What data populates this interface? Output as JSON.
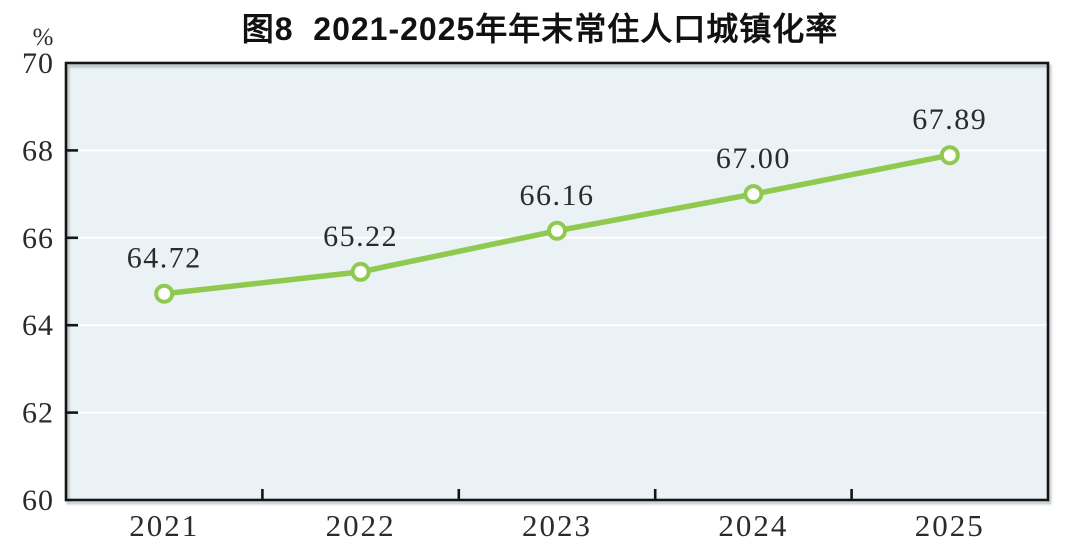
{
  "title": "图8  2021-2025年年末常住人口城镇化率",
  "chart_data": {
    "type": "line",
    "title": "图8  2021-2025年年末常住人口城镇化率",
    "categories": [
      "2021",
      "2022",
      "2023",
      "2024",
      "2025"
    ],
    "values": [
      64.72,
      65.22,
      66.16,
      67.0,
      67.89
    ],
    "point_labels": [
      "64.72",
      "65.22",
      "66.16",
      "67.00",
      "67.89"
    ],
    "xlabel": "",
    "ylabel": "%",
    "ylim": [
      60,
      70
    ],
    "yticks": [
      60,
      62,
      64,
      66,
      68,
      70
    ],
    "grid": true,
    "legend": "none",
    "line_color": "#8FC94F",
    "marker_fill": "#FFFFFF",
    "plot_bg": "#EAF2F5",
    "gridline_color": "#FFFFFF",
    "frame_color": "#151515",
    "text_color": "#2B2B2B"
  }
}
